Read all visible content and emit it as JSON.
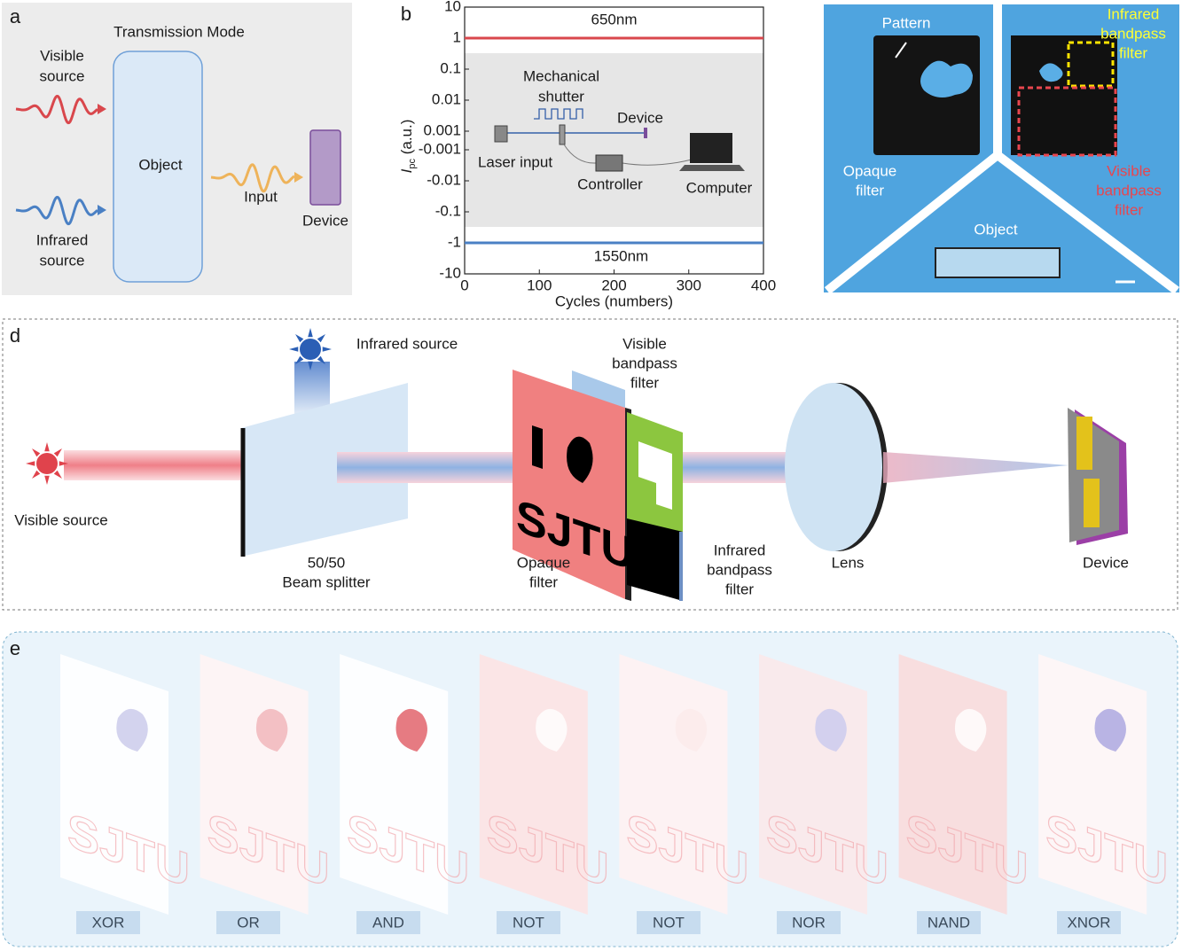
{
  "panel_a": {
    "label": "a",
    "title": "Transmission Mode",
    "visible_source": [
      "Visible",
      "source"
    ],
    "infrared_source": [
      "Infrared",
      "source"
    ],
    "object": "Object",
    "input": "Input",
    "device": "Device"
  },
  "chart_data": {
    "type": "line",
    "panel_label": "b",
    "x_label": "Cycles (numbers)",
    "y_label": {
      "symbol": "I",
      "subscript": "pc",
      "unit": "(a.u.)"
    },
    "x": [
      0,
      100,
      200,
      300,
      400
    ],
    "series": [
      {
        "name": "650nm",
        "color": "#d9474c",
        "values": [
          1,
          1,
          1,
          1,
          1
        ]
      },
      {
        "name": "1550nm",
        "color": "#4a80c4",
        "values": [
          -1,
          -1,
          -1,
          -1,
          -1
        ]
      }
    ],
    "xlim": [
      0,
      400
    ],
    "xticks": [
      0,
      100,
      200,
      300,
      400
    ],
    "ylim": [
      -10,
      10
    ],
    "yscale": "symlog",
    "yticks": [
      10,
      1,
      0.1,
      0.01,
      0.001,
      -0.001,
      -0.01,
      -0.1,
      -1,
      -10
    ],
    "inset": {
      "mechanical_shutter": [
        "Mechanical",
        "shutter"
      ],
      "device": "Device",
      "laser_input": "Laser input",
      "controller": "Controller",
      "computer": "Computer"
    }
  },
  "panel_c": {
    "pattern": "Pattern",
    "infrared_filter": [
      "Infrared",
      "bandpass",
      "filter"
    ],
    "opaque_filter": [
      "Opaque",
      "filter"
    ],
    "visible_filter": [
      "Visible",
      "bandpass",
      "filter"
    ],
    "object": "Object"
  },
  "panel_d": {
    "label": "d",
    "infrared_source": "Infrared source",
    "visible_filter": [
      "Visible",
      "bandpass",
      "filter"
    ],
    "visible_source": "Visible source",
    "beam_splitter": [
      "50/50",
      "Beam splitter"
    ],
    "opaque_filter": [
      "Opaque",
      "filter"
    ],
    "infrared_filter": [
      "Infrared",
      "bandpass",
      "filter"
    ],
    "lens": "Lens",
    "device": "Device",
    "filter_pattern": "SJTU"
  },
  "panel_e": {
    "label": "e",
    "image_pattern": "SJTU",
    "gates": [
      "XOR",
      "OR",
      "AND",
      "NOT",
      "NOT",
      "NOR",
      "NAND",
      "XNOR"
    ]
  }
}
